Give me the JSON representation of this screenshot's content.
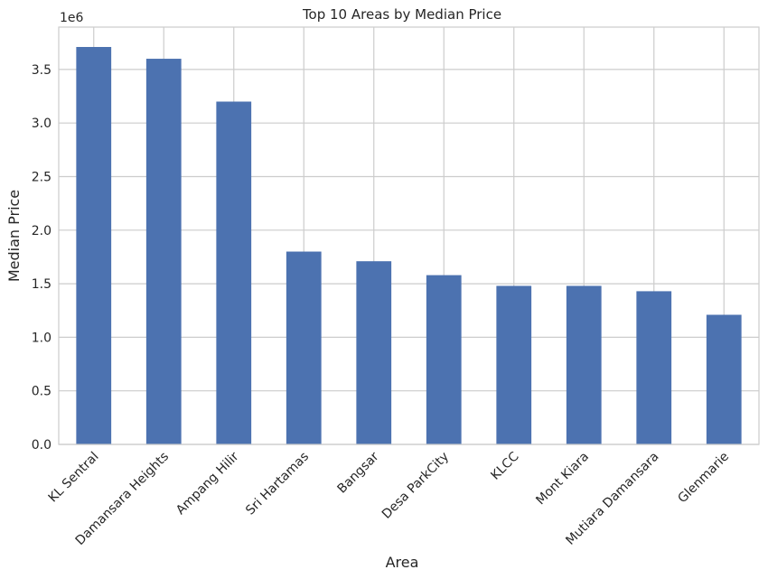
{
  "chart_data": {
    "type": "bar",
    "title": "Top 10 Areas by Median Price",
    "xlabel": "Area",
    "ylabel": "Median Price",
    "y_offset_label": "1e6",
    "categories": [
      "KL Sentral",
      "Damansara Heights",
      "Ampang Hilir",
      "Sri Hartamas",
      "Bangsar",
      "Desa ParkCity",
      "KLCC",
      "Mont Kiara",
      "Mutiara Damansara",
      "Glenmarie"
    ],
    "values": [
      3710000,
      3600000,
      3200000,
      1800000,
      1710000,
      1580000,
      1480000,
      1480000,
      1430000,
      1210000
    ],
    "ylim": [
      0,
      3895500
    ],
    "yticks": [
      0,
      500000,
      1000000,
      1500000,
      2000000,
      2500000,
      3000000,
      3500000
    ],
    "ytick_labels": [
      "0.0",
      "0.5",
      "1.0",
      "1.5",
      "2.0",
      "2.5",
      "3.0",
      "3.5"
    ],
    "grid": true,
    "bar_color": "#4c72b0",
    "grid_color": "#cccccc",
    "axes_edge_color": "#cccccc"
  }
}
